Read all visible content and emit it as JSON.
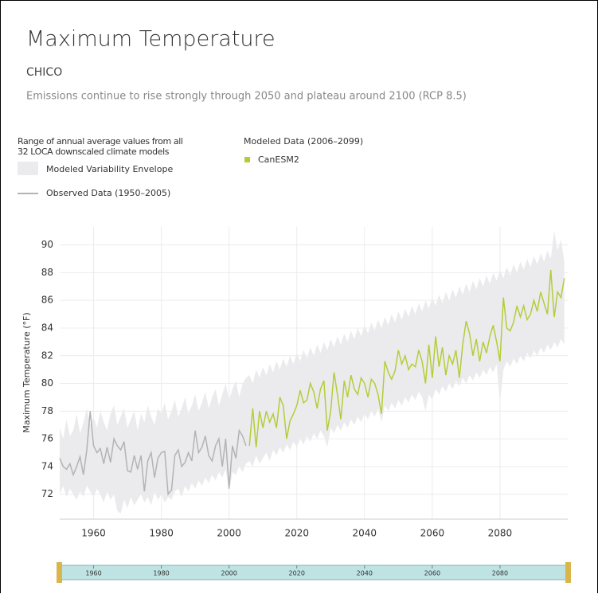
{
  "chart_data": {
    "type": "line",
    "title": "Maximum Temperature",
    "location": "CHICO",
    "subtitle": "Emissions continue to rise strongly through 2050 and plateau around 2100 (RCP 8.5)",
    "legend_note": [
      "Range of annual average values from all",
      "32 LOCA downscaled climate models"
    ],
    "modeled_heading": "Modeled Data (2006–2099)",
    "y_label": "Maximum Temperature (°F)",
    "xlim": [
      1950,
      2100
    ],
    "ylim": [
      70.2,
      91.3
    ],
    "xticks": [
      1960,
      1980,
      2000,
      2020,
      2040,
      2060,
      2080
    ],
    "yticks": [
      72,
      74,
      76,
      78,
      80,
      82,
      84,
      86,
      88,
      90
    ],
    "grid": true,
    "x": [
      1950,
      1951,
      1952,
      1953,
      1954,
      1955,
      1956,
      1957,
      1958,
      1959,
      1960,
      1961,
      1962,
      1963,
      1964,
      1965,
      1966,
      1967,
      1968,
      1969,
      1970,
      1971,
      1972,
      1973,
      1974,
      1975,
      1976,
      1977,
      1978,
      1979,
      1980,
      1981,
      1982,
      1983,
      1984,
      1985,
      1986,
      1987,
      1988,
      1989,
      1990,
      1991,
      1992,
      1993,
      1994,
      1995,
      1996,
      1997,
      1998,
      1999,
      2000,
      2001,
      2002,
      2003,
      2004,
      2005,
      2006,
      2007,
      2008,
      2009,
      2010,
      2011,
      2012,
      2013,
      2014,
      2015,
      2016,
      2017,
      2018,
      2019,
      2020,
      2021,
      2022,
      2023,
      2024,
      2025,
      2026,
      2027,
      2028,
      2029,
      2030,
      2031,
      2032,
      2033,
      2034,
      2035,
      2036,
      2037,
      2038,
      2039,
      2040,
      2041,
      2042,
      2043,
      2044,
      2045,
      2046,
      2047,
      2048,
      2049,
      2050,
      2051,
      2052,
      2053,
      2054,
      2055,
      2056,
      2057,
      2058,
      2059,
      2060,
      2061,
      2062,
      2063,
      2064,
      2065,
      2066,
      2067,
      2068,
      2069,
      2070,
      2071,
      2072,
      2073,
      2074,
      2075,
      2076,
      2077,
      2078,
      2079,
      2080,
      2081,
      2082,
      2083,
      2084,
      2085,
      2086,
      2087,
      2088,
      2089,
      2090,
      2091,
      2092,
      2093,
      2094,
      2095,
      2096,
      2097,
      2098,
      2099
    ],
    "envelope": {
      "name": "Modeled Variability Envelope",
      "color": "#ebebed",
      "upper": [
        76.8,
        76.0,
        77.4,
        76.2,
        76.6,
        77.8,
        76.4,
        77.2,
        78.2,
        77.0,
        77.6,
        76.8,
        78.0,
        77.2,
        76.6,
        77.8,
        78.4,
        77.0,
        77.6,
        78.2,
        76.8,
        77.4,
        78.0,
        76.6,
        77.8,
        77.2,
        78.4,
        77.6,
        77.0,
        78.2,
        77.8,
        78.6,
        77.4,
        78.0,
        78.8,
        77.6,
        78.2,
        79.0,
        77.8,
        78.4,
        79.2,
        78.0,
        78.6,
        79.4,
        78.2,
        79.0,
        79.6,
        78.4,
        79.2,
        80.0,
        78.8,
        79.6,
        80.2,
        79.0,
        80.0,
        80.4,
        80.6,
        80.0,
        81.0,
        80.4,
        81.2,
        80.6,
        81.4,
        80.8,
        81.6,
        81.0,
        81.8,
        81.2,
        82.0,
        81.4,
        82.2,
        81.6,
        82.4,
        81.8,
        82.6,
        82.0,
        82.8,
        82.2,
        83.0,
        82.4,
        83.2,
        82.6,
        83.4,
        82.8,
        83.6,
        83.0,
        83.8,
        83.2,
        84.0,
        83.4,
        84.2,
        83.6,
        84.4,
        83.8,
        84.6,
        84.0,
        84.8,
        84.2,
        85.0,
        84.4,
        85.2,
        84.6,
        85.4,
        84.8,
        85.6,
        85.0,
        85.8,
        85.2,
        86.0,
        85.4,
        86.2,
        85.6,
        86.4,
        85.8,
        86.6,
        86.0,
        86.8,
        86.2,
        87.0,
        86.4,
        87.2,
        86.6,
        87.4,
        86.8,
        87.6,
        87.0,
        87.8,
        87.2,
        88.0,
        87.4,
        88.2,
        87.6,
        88.4,
        87.8,
        88.6,
        88.0,
        88.8,
        88.2,
        89.0,
        88.4,
        89.2,
        88.6,
        89.4,
        88.8,
        89.6,
        89.0,
        91.0,
        89.6,
        90.4,
        88.8
      ],
      "lower": [
        72.0,
        72.6,
        71.8,
        72.4,
        72.0,
        71.6,
        72.2,
        71.8,
        72.6,
        72.2,
        71.8,
        72.4,
        72.0,
        71.4,
        72.2,
        71.6,
        72.0,
        70.8,
        70.6,
        71.6,
        71.0,
        71.8,
        71.2,
        71.6,
        72.0,
        71.4,
        71.8,
        71.2,
        72.2,
        71.6,
        72.0,
        71.4,
        71.8,
        71.6,
        72.2,
        72.4,
        71.8,
        72.6,
        72.2,
        72.8,
        72.4,
        73.0,
        72.6,
        73.2,
        72.8,
        73.4,
        73.0,
        73.6,
        73.2,
        73.8,
        72.2,
        73.6,
        73.4,
        74.0,
        73.6,
        74.2,
        74.4,
        74.0,
        74.8,
        74.2,
        74.6,
        75.0,
        74.4,
        75.2,
        74.8,
        75.4,
        75.0,
        75.6,
        75.2,
        75.8,
        75.4,
        76.0,
        75.6,
        76.2,
        75.8,
        76.4,
        76.0,
        76.6,
        76.2,
        75.4,
        76.8,
        76.4,
        77.0,
        76.6,
        77.2,
        76.8,
        77.4,
        77.0,
        77.6,
        77.2,
        77.8,
        77.4,
        78.0,
        77.6,
        78.2,
        77.2,
        78.4,
        78.0,
        78.6,
        78.2,
        78.8,
        78.4,
        79.0,
        78.6,
        79.2,
        78.8,
        79.4,
        79.0,
        78.0,
        79.2,
        78.8,
        79.6,
        79.2,
        79.8,
        79.4,
        80.0,
        79.6,
        80.2,
        79.8,
        80.4,
        80.0,
        80.6,
        80.2,
        80.8,
        80.4,
        81.0,
        80.6,
        81.2,
        80.8,
        81.4,
        78.6,
        81.0,
        81.6,
        81.2,
        81.8,
        81.4,
        82.0,
        81.6,
        82.2,
        81.8,
        82.4,
        82.0,
        82.6,
        82.2,
        82.8,
        82.4,
        83.0,
        82.6,
        83.2,
        82.8
      ]
    },
    "series": [
      {
        "name": "Observed Data (1950–2005)",
        "color": "#b3b3b3",
        "values": [
          74.6,
          74.0,
          73.8,
          74.2,
          73.4,
          74.0,
          74.7,
          73.4,
          75.2,
          78.0,
          75.5,
          75.0,
          75.3,
          74.2,
          75.4,
          74.3,
          76.0,
          75.5,
          75.2,
          75.8,
          73.7,
          73.6,
          74.8,
          73.8,
          74.8,
          72.2,
          74.4,
          75.0,
          73.2,
          74.6,
          75.0,
          75.1,
          72.0,
          72.3,
          74.8,
          75.2,
          74.0,
          74.3,
          75.0,
          74.4,
          76.6,
          75.0,
          75.4,
          76.2,
          74.8,
          74.4,
          75.5,
          76.0,
          74.0,
          76.0,
          72.4,
          75.5,
          74.6,
          76.6,
          76.2,
          75.5,
          null,
          null,
          null,
          null,
          null,
          null,
          null,
          null,
          null,
          null,
          null,
          null,
          null,
          null,
          null,
          null,
          null,
          null,
          null,
          null,
          null,
          null,
          null,
          null,
          null,
          null,
          null,
          null,
          null,
          null,
          null,
          null,
          null,
          null,
          null,
          null,
          null,
          null,
          null,
          null,
          null,
          null,
          null,
          null,
          null,
          null,
          null,
          null,
          null,
          null,
          null,
          null,
          null,
          null,
          null,
          null,
          null,
          null,
          null,
          null,
          null,
          null,
          null,
          null,
          null,
          null,
          null,
          null,
          null,
          null,
          null,
          null,
          null,
          null,
          null,
          null,
          null,
          null,
          null,
          null,
          null,
          null,
          null,
          null,
          null,
          null,
          null,
          null,
          null,
          null,
          null,
          null,
          null,
          null
        ]
      },
      {
        "name": "CanESM2",
        "color": "#b5cc3a",
        "values": [
          null,
          null,
          null,
          null,
          null,
          null,
          null,
          null,
          null,
          null,
          null,
          null,
          null,
          null,
          null,
          null,
          null,
          null,
          null,
          null,
          null,
          null,
          null,
          null,
          null,
          null,
          null,
          null,
          null,
          null,
          null,
          null,
          null,
          null,
          null,
          null,
          null,
          null,
          null,
          null,
          null,
          null,
          null,
          null,
          null,
          null,
          null,
          null,
          null,
          null,
          null,
          null,
          null,
          null,
          null,
          null,
          75.5,
          78.2,
          75.4,
          78.0,
          76.8,
          78.0,
          77.2,
          77.8,
          76.8,
          79.0,
          78.4,
          76.0,
          77.3,
          77.8,
          78.4,
          79.5,
          78.6,
          78.8,
          80.0,
          79.4,
          78.2,
          79.6,
          80.2,
          76.6,
          78.0,
          80.8,
          79.2,
          77.4,
          80.2,
          79.0,
          80.6,
          79.6,
          79.2,
          80.4,
          80.0,
          79.0,
          80.3,
          80.0,
          79.2,
          77.8,
          81.6,
          80.8,
          80.3,
          80.9,
          82.4,
          81.4,
          82.0,
          81.0,
          81.4,
          81.2,
          82.4,
          81.6,
          80.0,
          82.8,
          80.4,
          83.4,
          81.2,
          82.6,
          80.6,
          82.0,
          81.4,
          82.4,
          80.4,
          82.8,
          84.5,
          83.6,
          82.0,
          83.2,
          81.6,
          83.0,
          82.2,
          83.4,
          84.2,
          83.0,
          81.6,
          86.2,
          84.0,
          83.8,
          84.4,
          85.6,
          84.8,
          85.6,
          84.6,
          85.0,
          86.0,
          85.2,
          86.6,
          85.8,
          85.0,
          88.2,
          84.8,
          86.6,
          86.2,
          87.6
        ]
      }
    ]
  }
}
